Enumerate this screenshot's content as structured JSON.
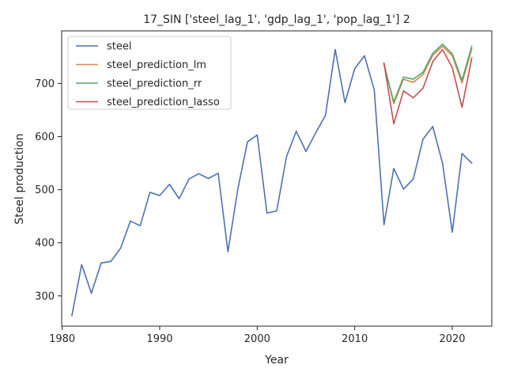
{
  "chart_data": {
    "type": "line",
    "title": "17_SIN ['steel_lag_1', 'gdp_lag_1', 'pop_lag_1'] 2",
    "xlabel": "Year",
    "ylabel": "Steel production",
    "xlim": [
      1979.95,
      2024.05
    ],
    "ylim": [
      243,
      799
    ],
    "xticks": [
      1980,
      1990,
      2000,
      2010,
      2020
    ],
    "yticks": [
      300,
      400,
      500,
      600,
      700
    ],
    "grid": false,
    "legend_placement": "upper-left",
    "series": [
      {
        "name": "steel",
        "color": "#4c72b0",
        "x": [
          1981,
          1982,
          1983,
          1984,
          1985,
          1986,
          1987,
          1988,
          1989,
          1990,
          1991,
          1992,
          1993,
          1994,
          1995,
          1996,
          1997,
          1998,
          1999,
          2000,
          2001,
          2002,
          2003,
          2004,
          2005,
          2006,
          2007,
          2008,
          2009,
          2010,
          2011,
          2012,
          2013,
          2014,
          2015,
          2016,
          2017,
          2018,
          2019,
          2020,
          2021,
          2022
        ],
        "y": [
          263,
          359,
          305,
          362,
          365,
          390,
          441,
          432,
          495,
          489,
          510,
          483,
          520,
          530,
          521,
          531,
          383,
          500,
          590,
          603,
          456,
          460,
          562,
          610,
          572,
          607,
          640,
          764,
          664,
          728,
          752,
          688,
          434,
          540,
          501,
          520,
          595,
          619,
          550,
          420,
          568,
          550
        ]
      },
      {
        "name": "steel_prediction_lm",
        "color": "#dd8452",
        "x": [
          2013,
          2014,
          2015,
          2016,
          2017,
          2018,
          2019,
          2020,
          2021,
          2022
        ],
        "y": [
          737,
          662,
          708,
          702,
          717,
          753,
          770,
          752,
          701,
          765
        ]
      },
      {
        "name": "steel_prediction_rr",
        "color": "#55a868",
        "x": [
          2013,
          2014,
          2015,
          2016,
          2017,
          2018,
          2019,
          2020,
          2021,
          2022
        ],
        "y": [
          736,
          665,
          712,
          708,
          721,
          757,
          774,
          756,
          706,
          770
        ]
      },
      {
        "name": "steel_prediction_lasso",
        "color": "#c44e52",
        "x": [
          2013,
          2014,
          2015,
          2016,
          2017,
          2018,
          2019,
          2020,
          2021,
          2022
        ],
        "y": [
          738,
          624,
          686,
          673,
          691,
          741,
          764,
          730,
          655,
          748
        ]
      }
    ]
  }
}
